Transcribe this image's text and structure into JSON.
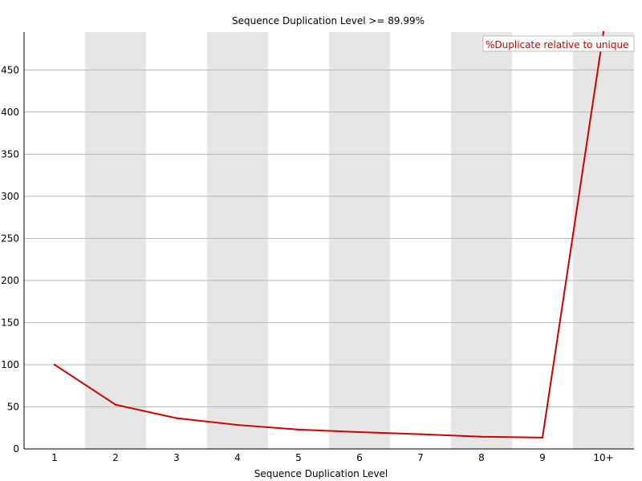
{
  "chart_data": {
    "type": "line",
    "title": "Sequence Duplication Level >= 89.99%",
    "xlabel": "Sequence Duplication Level",
    "ylabel": "",
    "categories": [
      "1",
      "2",
      "3",
      "4",
      "5",
      "6",
      "7",
      "8",
      "9",
      "10+"
    ],
    "series": [
      {
        "name": "%Duplicate relative to unique",
        "values": [
          100,
          52.5,
          36.5,
          28.5,
          23,
          20,
          17.5,
          14.5,
          13.5,
          495
        ],
        "color": "#cc0000"
      }
    ],
    "ylim": [
      0,
      495
    ],
    "yticks": [
      0,
      50,
      100,
      150,
      200,
      250,
      300,
      350,
      400,
      450
    ],
    "grid": true,
    "legend_position": "top-right",
    "band_color": "#e6e6e6"
  }
}
